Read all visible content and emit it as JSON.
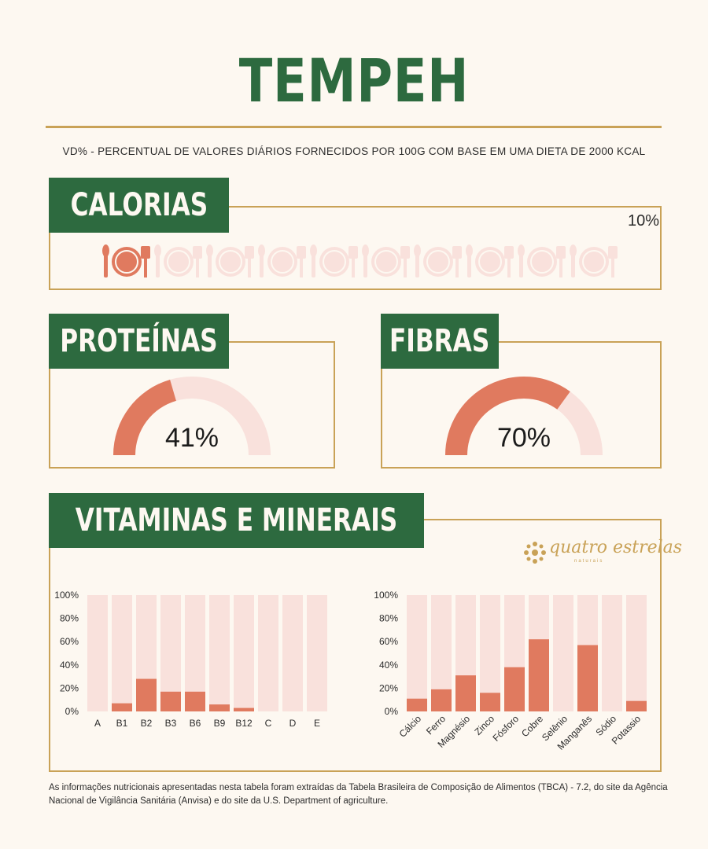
{
  "title": "TEMPEH",
  "subtitle": "VD% - PERCENTUAL DE VALORES DIÁRIOS FORNECIDOS POR 100G COM BASE EM UMA DIETA DE 2000 KCAL",
  "calories": {
    "label": "CALORIAS",
    "value_text": "10%",
    "value": 10,
    "icons_total": 10,
    "icon": "plate-with-cutlery-icon"
  },
  "proteins": {
    "label": "PROTEÍNAS",
    "value_text": "41%",
    "value": 41
  },
  "fibers": {
    "label": "FIBRAS",
    "value_text": "70%",
    "value": 70
  },
  "vitamins_section": {
    "label": "VITAMINAS E MINERAIS"
  },
  "logo": {
    "text": "quatro estrelas",
    "subtext": "naturais"
  },
  "colors": {
    "green": "#2d6a3f",
    "gold": "#c9a257",
    "coral": "#e07a5f",
    "light": "#f9e1dc",
    "bg": "#fdf8f1"
  },
  "chart_data": [
    {
      "type": "bar",
      "categories": [
        "A",
        "B1",
        "B2",
        "B3",
        "B6",
        "B9",
        "B12",
        "C",
        "D",
        "E"
      ],
      "values": [
        0,
        7,
        28,
        17,
        17,
        6,
        3,
        0,
        0,
        0
      ],
      "ylim": [
        0,
        100
      ],
      "yticks": [
        "0%",
        "20%",
        "40%",
        "60%",
        "80%",
        "100%"
      ],
      "title": "",
      "xlabel": "",
      "ylabel": ""
    },
    {
      "type": "bar",
      "categories": [
        "Cálcio",
        "Ferro",
        "Magnésio",
        "Zinco",
        "Fósforo",
        "Cobre",
        "Selênio",
        "Manganês",
        "Sódio",
        "Potassio"
      ],
      "values": [
        11,
        19,
        31,
        16,
        38,
        62,
        0,
        57,
        0,
        9
      ],
      "ylim": [
        0,
        100
      ],
      "yticks": [
        "0%",
        "20%",
        "40%",
        "60%",
        "80%",
        "100%"
      ],
      "title": "",
      "xlabel": "",
      "ylabel": ""
    }
  ],
  "footnote": "As informações nutricionais apresentadas nesta tabela foram extraídas da Tabela Brasileira de Composição de Alimentos (TBCA) - 7.2, do site da Agência Nacional de Vigilância Sanitária (Anvisa) e do site da U.S. Department of agriculture."
}
